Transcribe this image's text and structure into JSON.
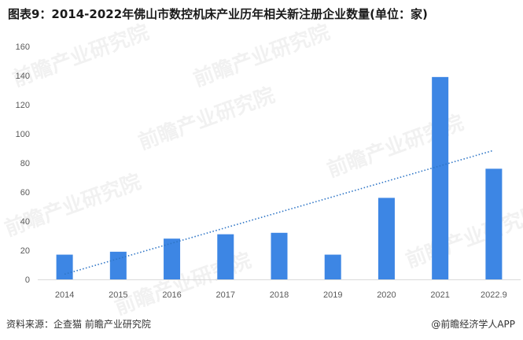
{
  "chart_data": {
    "type": "bar",
    "title": "图表9：2014-2022年佛山市数控机床产业历年相关新注册企业数量(单位：家)",
    "categories": [
      "2014",
      "2015",
      "2016",
      "2017",
      "2018",
      "2019",
      "2020",
      "2021",
      "2022.9"
    ],
    "series": [
      {
        "values": [
          17,
          19,
          28,
          31,
          32,
          17,
          56,
          139,
          76
        ]
      }
    ],
    "trendline": {
      "type": "linear",
      "style": "dotted"
    },
    "ylim": [
      0,
      160
    ],
    "yticks": [
      0,
      20,
      40,
      60,
      80,
      100,
      120,
      140,
      160
    ],
    "grid": false,
    "legend": "none",
    "colors": {
      "bar": "#3d86e4",
      "trend": "#2e75c6",
      "axis": "#d9d9d9"
    }
  },
  "footer": {
    "source": "资料来源：企查猫 前瞻产业研究院",
    "brand": "@前瞻经济学人APP"
  },
  "watermark": "前瞻产业研究院"
}
